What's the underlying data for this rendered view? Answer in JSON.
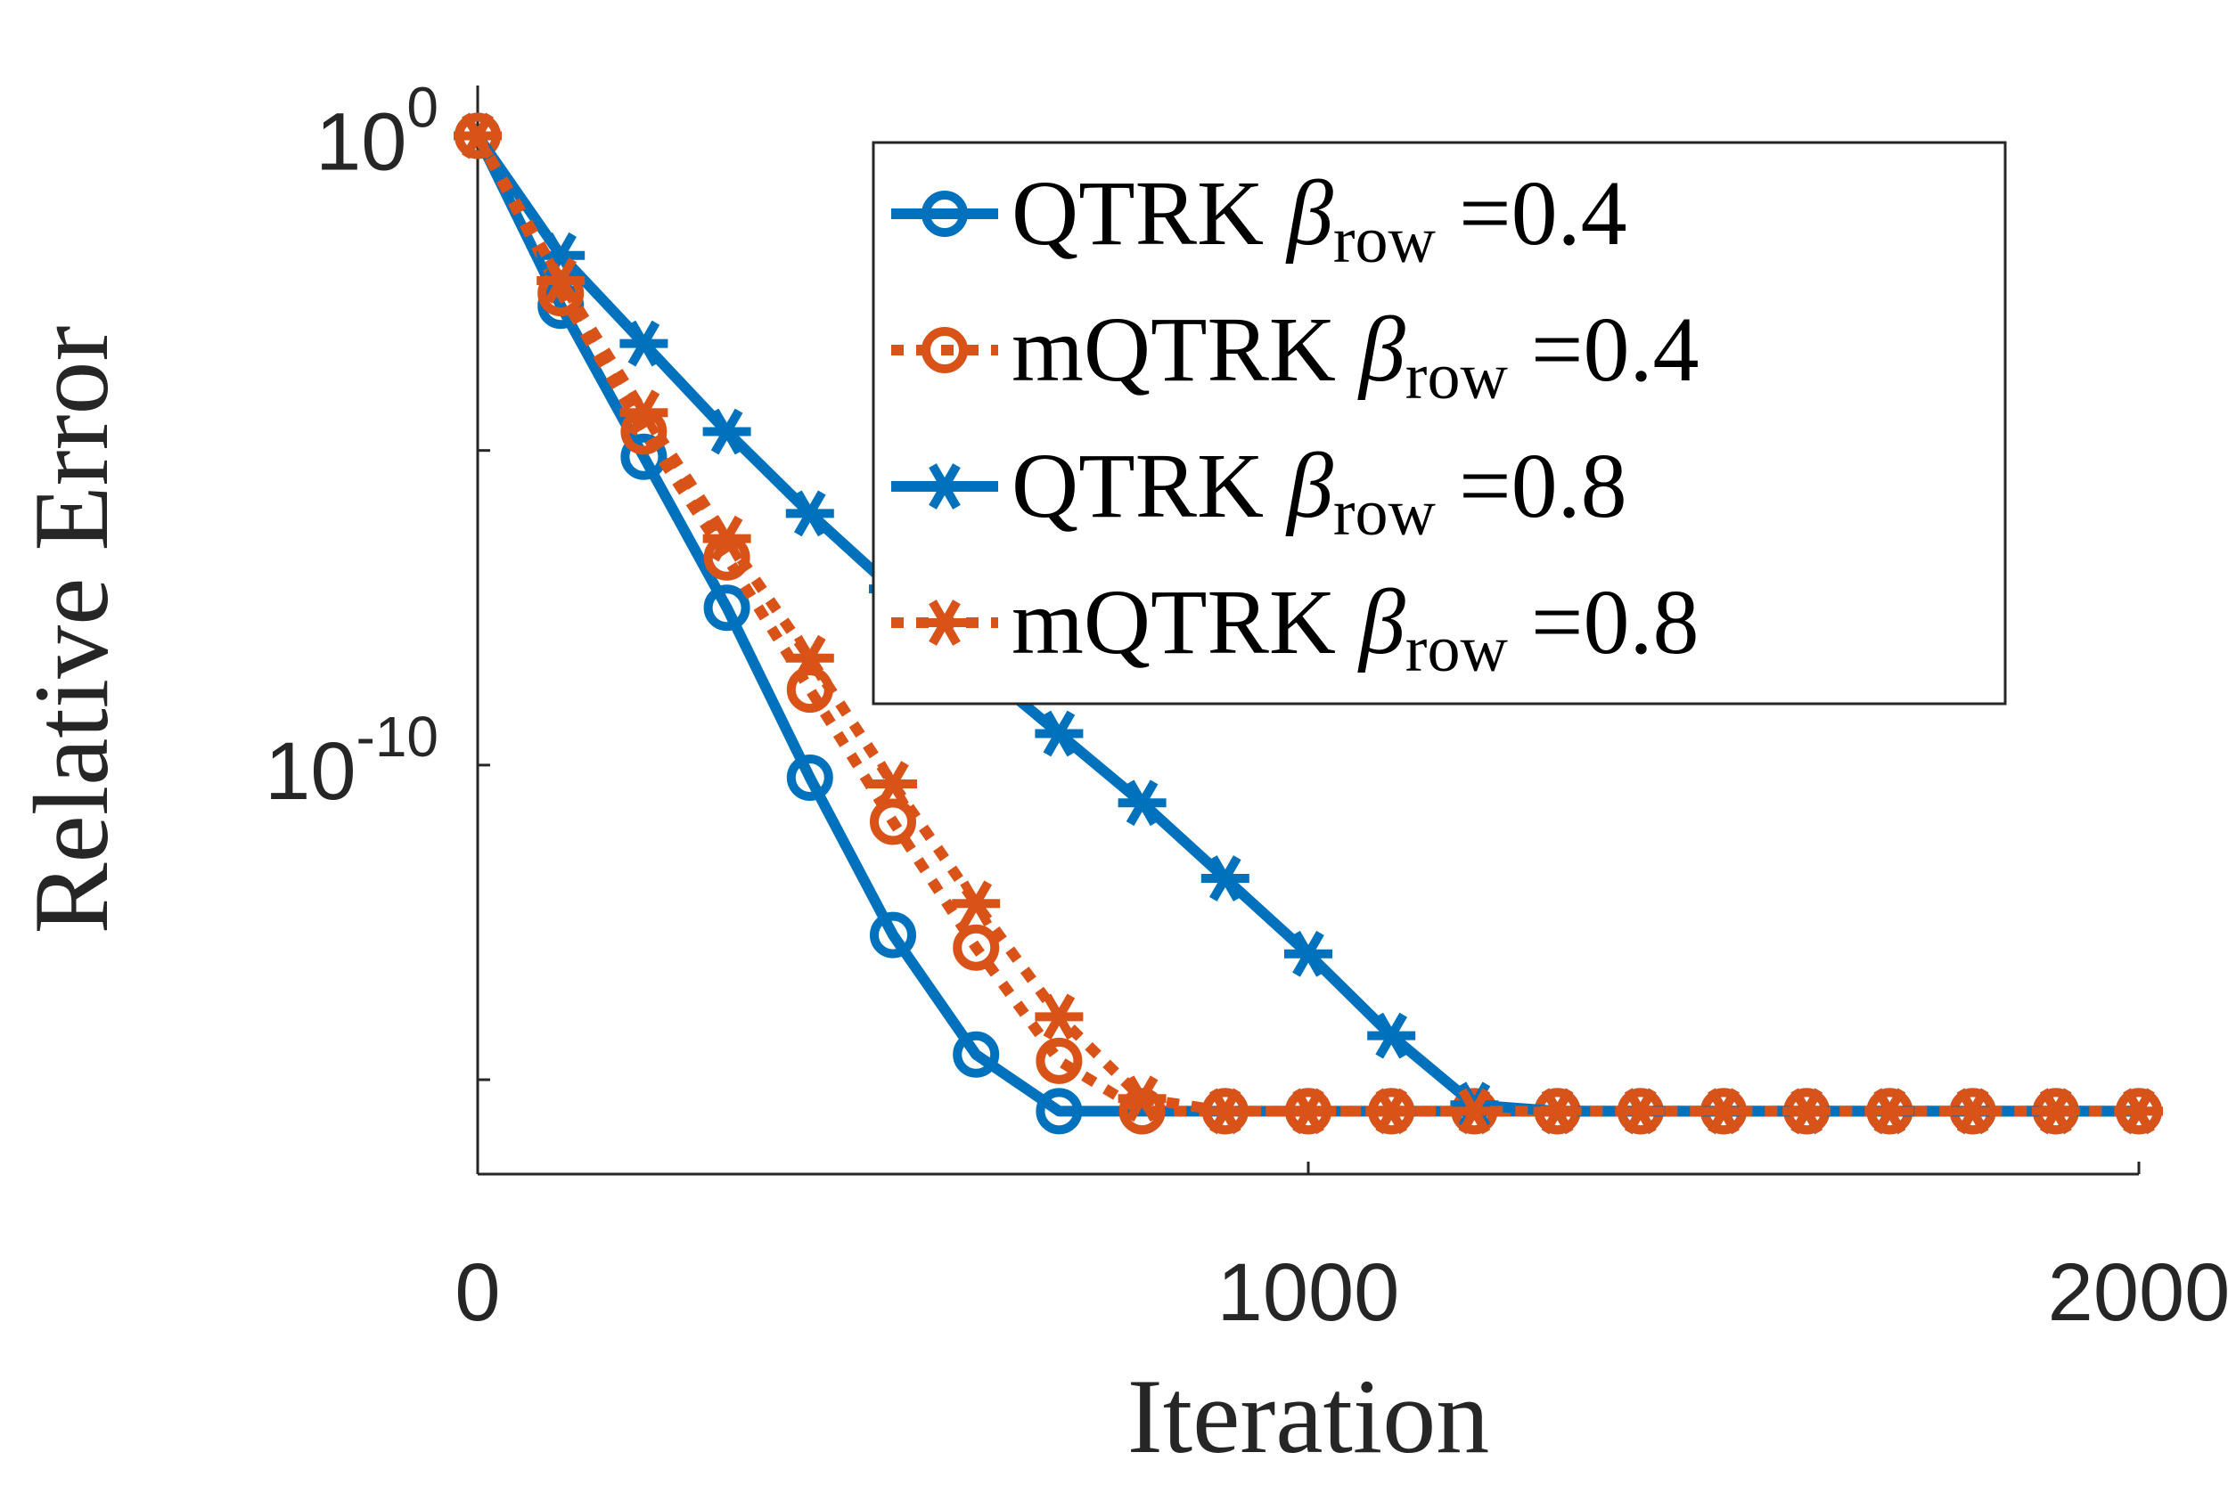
{
  "chart_data": {
    "type": "line",
    "title": "",
    "xlabel": "Iteration",
    "ylabel": "Relative Error",
    "xlim": [
      0,
      2000
    ],
    "ylim_log10": [
      -16.5,
      0.8
    ],
    "yscale": "log",
    "grid": false,
    "legend_position": "top-right",
    "x_ticks": [
      {
        "value": 0,
        "label": "0"
      },
      {
        "value": 1000,
        "label": "1000"
      },
      {
        "value": 2000,
        "label": "2000"
      }
    ],
    "y_ticks": [
      {
        "log10": 0,
        "base": "10",
        "exp": "0"
      },
      {
        "log10": -5,
        "base": "",
        "exp": ""
      },
      {
        "log10": -10,
        "base": "10",
        "exp": "-10"
      },
      {
        "log10": -15,
        "base": "",
        "exp": ""
      }
    ],
    "series": [
      {
        "name_main": "QTRK ",
        "name_beta": "β",
        "name_sub": "row",
        "name_value": " =0.4",
        "color": "#0072BD",
        "line_style": "solid",
        "marker": "circle",
        "x": [
          0,
          100,
          200,
          300,
          400,
          500,
          600,
          700,
          800,
          900,
          1000,
          1100,
          1200,
          1300,
          1400,
          1500,
          1600,
          1700,
          1800,
          1900,
          2000
        ],
        "y_log10": [
          0,
          -2.7,
          -5.1,
          -7.5,
          -10.2,
          -12.7,
          -14.6,
          -15.5,
          -15.5,
          -15.5,
          -15.5,
          -15.5,
          -15.5,
          -15.5,
          -15.5,
          -15.5,
          -15.5,
          -15.5,
          -15.5,
          -15.5,
          -15.5
        ]
      },
      {
        "name_main": "mQTRK ",
        "name_beta": "β",
        "name_sub": "row",
        "name_value": " =0.4",
        "color": "#D95319",
        "line_style": "dotted",
        "marker": "circle",
        "x": [
          0,
          100,
          200,
          300,
          400,
          500,
          600,
          700,
          800,
          900,
          1000,
          1100,
          1200,
          1300,
          1400,
          1500,
          1600,
          1700,
          1800,
          1900,
          2000
        ],
        "y_log10": [
          0,
          -2.5,
          -4.7,
          -6.7,
          -8.8,
          -10.9,
          -12.9,
          -14.7,
          -15.5,
          -15.5,
          -15.5,
          -15.5,
          -15.5,
          -15.5,
          -15.5,
          -15.5,
          -15.5,
          -15.5,
          -15.5,
          -15.5,
          -15.5
        ]
      },
      {
        "name_main": "QTRK ",
        "name_beta": "β",
        "name_sub": "row",
        "name_value": " =0.8",
        "color": "#0072BD",
        "line_style": "solid",
        "marker": "asterisk",
        "x": [
          0,
          100,
          200,
          300,
          400,
          500,
          600,
          700,
          800,
          900,
          1000,
          1100,
          1200,
          1300,
          1400,
          1500,
          1600,
          1700,
          1800,
          1900,
          2000
        ],
        "y_log10": [
          0,
          -1.9,
          -3.3,
          -4.7,
          -6.0,
          -7.2,
          -8.4,
          -9.5,
          -10.6,
          -11.8,
          -13.0,
          -14.3,
          -15.4,
          -15.5,
          -15.5,
          -15.5,
          -15.5,
          -15.5,
          -15.5,
          -15.5,
          -15.5
        ]
      },
      {
        "name_main": "mQTRK ",
        "name_beta": "β",
        "name_sub": "row",
        "name_value": " =0.8",
        "color": "#D95319",
        "line_style": "dotted",
        "marker": "asterisk",
        "x": [
          0,
          100,
          200,
          300,
          400,
          500,
          600,
          700,
          800,
          900,
          1000,
          1100,
          1200,
          1300,
          1400,
          1500,
          1600,
          1700,
          1800,
          1900,
          2000
        ],
        "y_log10": [
          0,
          -2.3,
          -4.4,
          -6.4,
          -8.3,
          -10.3,
          -12.2,
          -14.0,
          -15.3,
          -15.5,
          -15.5,
          -15.5,
          -15.5,
          -15.5,
          -15.5,
          -15.5,
          -15.5,
          -15.5,
          -15.5,
          -15.5,
          -15.5
        ]
      }
    ]
  }
}
